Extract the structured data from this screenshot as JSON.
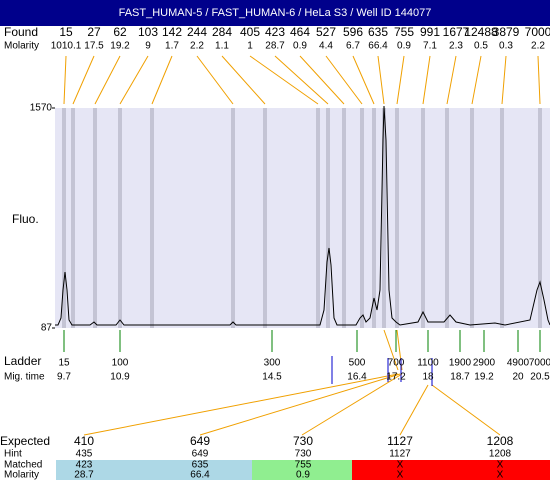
{
  "chart_data": {
    "type": "electropherogram",
    "title": "FAST_HUMAN-5 / FAST_HUMAN-6 / HeLa S3 / Well ID 144077",
    "found_label": "Found",
    "found": [
      "15",
      "27",
      "62",
      "103",
      "142",
      "244",
      "284",
      "405",
      "423",
      "464",
      "527",
      "596",
      "635",
      "755",
      "991",
      "1677",
      "12488",
      "3879",
      "7000"
    ],
    "molarity_label": "Molarity",
    "molarity": [
      "1010.1",
      "17.5",
      "19.2",
      "9",
      "1.7",
      "2.2",
      "1.1",
      "1",
      "28.7",
      "0.9",
      "4.4",
      "6.7",
      "66.4",
      "0.9",
      "7.1",
      "2.3",
      "0.5",
      "0.3",
      "2.2"
    ],
    "y_axis_label": "Fluo.",
    "ylim": [
      87,
      1570
    ],
    "yticks": [
      87,
      1570
    ],
    "ladder_label": "Ladder",
    "ladder": [
      "15",
      "100",
      "300",
      "500",
      "700",
      "1100",
      "1900",
      "2900",
      "4900",
      "7000"
    ],
    "migtime_label": "Mig. time",
    "migtime": [
      "9.7",
      "10.9",
      "14.5",
      "16.4",
      "17.2",
      "18",
      "18.7",
      "19.2",
      "20",
      "20.5"
    ],
    "table": {
      "row_labels": [
        "Expected",
        "Hint",
        "Matched",
        "Molarity"
      ],
      "expected": [
        "410",
        "649",
        "730",
        "1127",
        "1208"
      ],
      "hint": [
        "435",
        "649",
        "730",
        "1127",
        "1208"
      ],
      "matched": [
        "423",
        "635",
        "755",
        "X",
        "X"
      ],
      "molarity": [
        "28.7",
        "66.4",
        "0.9",
        "X",
        "X"
      ],
      "colors": [
        "#add8e6",
        "#add8e6",
        "#90ee90",
        "#ff0000",
        "#ff0000"
      ]
    }
  }
}
